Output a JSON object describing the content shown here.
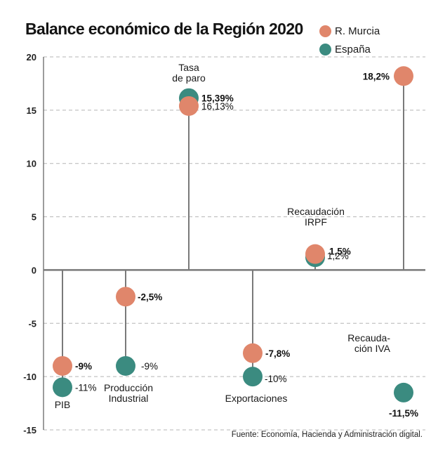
{
  "header": {
    "title": "Balance económico de la Región 2020"
  },
  "legend": [
    {
      "label": "R. Murcia",
      "color": "#e0866b"
    },
    {
      "label": "España",
      "color": "#3b8b80"
    }
  ],
  "source": "Fuente: Economía, Hacienda y Administración digital.",
  "chart_data": {
    "type": "scatter",
    "subtype": "dumbbell-lollipop",
    "title": "Balance económico de la Región 2020",
    "xlabel": "",
    "ylabel": "",
    "ylim": [
      -15,
      20
    ],
    "yticks": [
      20,
      15,
      10,
      5,
      0,
      -5,
      -10,
      -15
    ],
    "ytick_labels": [
      "20",
      "15",
      "10",
      "5",
      "0",
      "-5",
      "-10",
      "-15"
    ],
    "grid": true,
    "legend_position": "top-right",
    "categories": [
      "PIB",
      "Producción Industrial",
      "Tasa de paro",
      "Exportaciones",
      "Recaudación IRPF",
      "Recaudación IVA"
    ],
    "category_label_lines": [
      [
        "PIB"
      ],
      [
        "Producción",
        "Industrial"
      ],
      [
        "Tasa",
        "de paro"
      ],
      [
        "Exportaciones"
      ],
      [
        "Recaudación",
        "IRPF"
      ],
      [
        "Recauda-",
        "ción IVA"
      ]
    ],
    "series": [
      {
        "name": "R. Murcia",
        "color": "#e0866b",
        "values": [
          -9,
          -2.5,
          15.39,
          -7.8,
          1.5,
          18.2
        ],
        "labels": [
          "-9%",
          "-2,5%",
          "15,39%",
          "-7,8%",
          "1,5%",
          "18,2%"
        ]
      },
      {
        "name": "España",
        "color": "#3b8b80",
        "values": [
          -11,
          -9,
          16.13,
          -10,
          1.2,
          -11.5
        ],
        "labels": [
          "-11%",
          "-9%",
          "16,13%",
          "-10%",
          "1,2%",
          "-11,5%"
        ]
      }
    ]
  }
}
